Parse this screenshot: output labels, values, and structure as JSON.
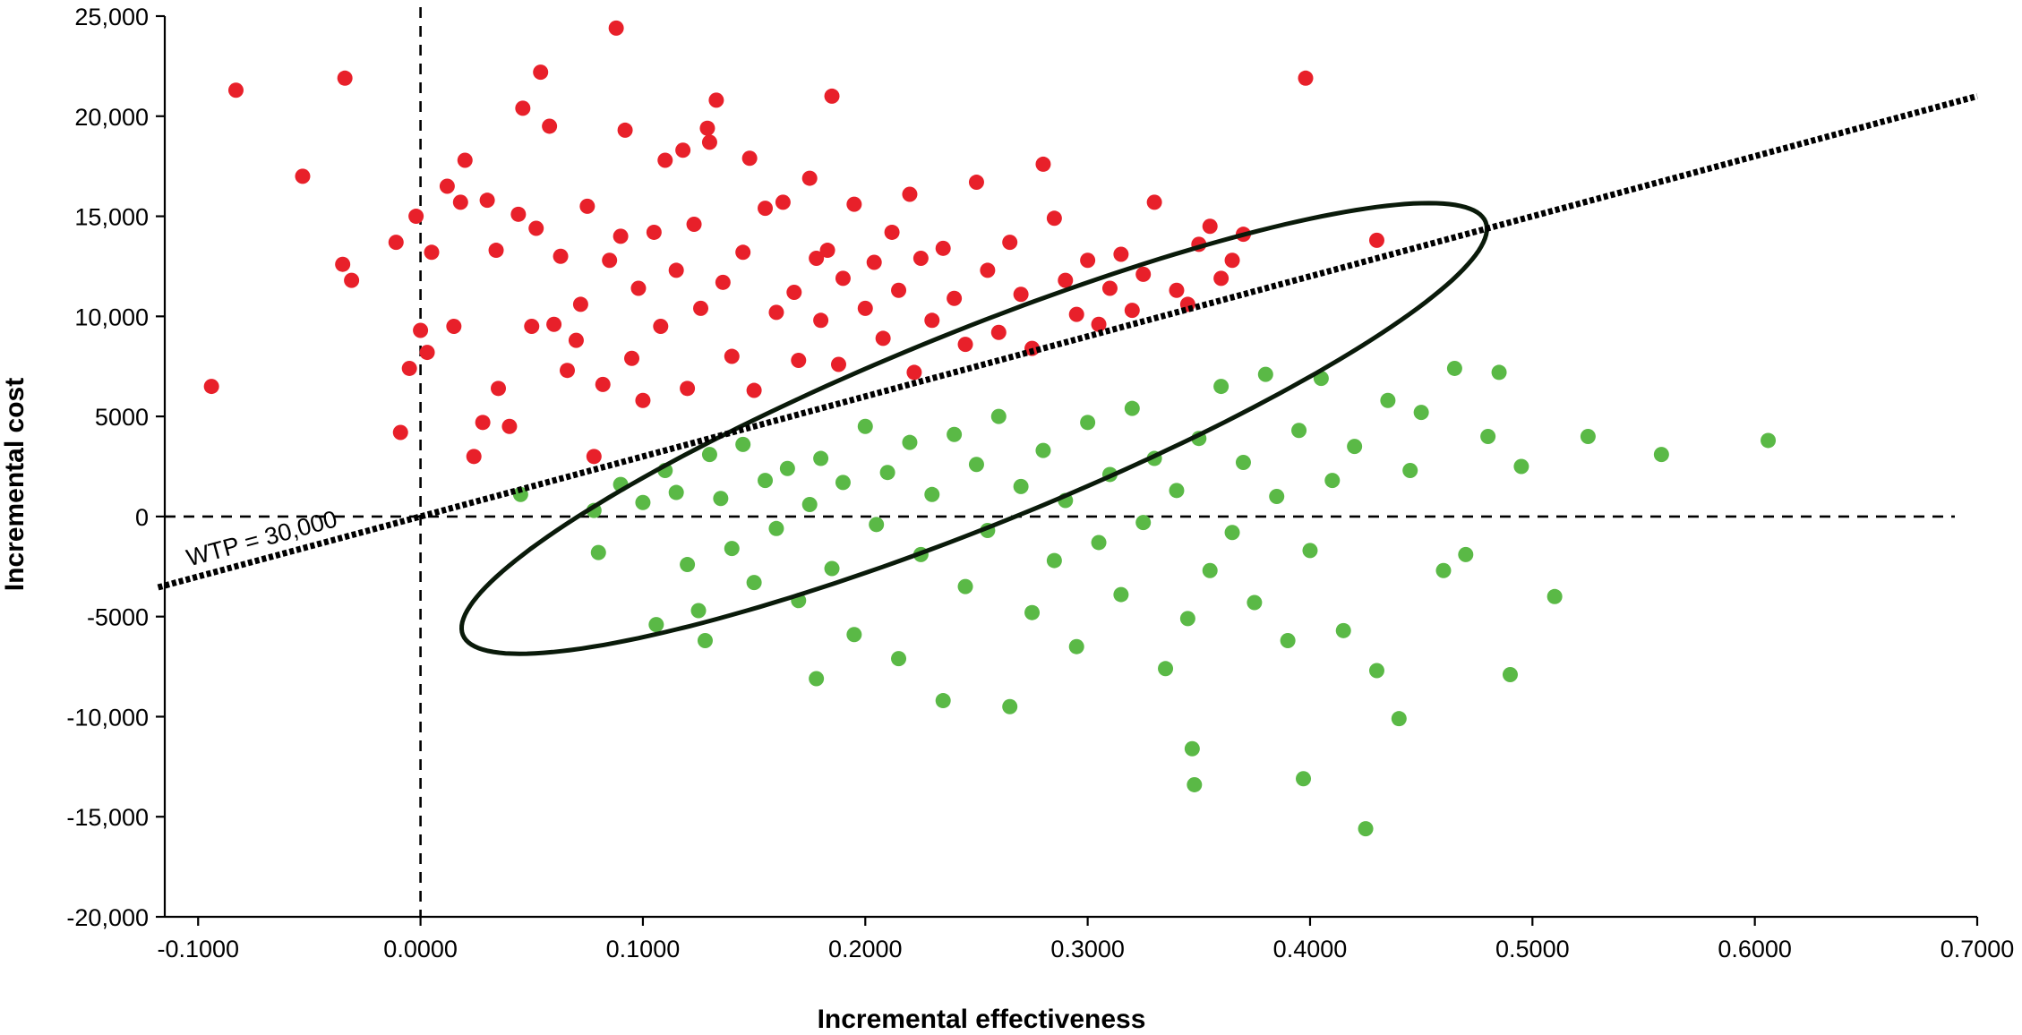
{
  "chart_data": {
    "type": "scatter",
    "title": "",
    "xlabel": "Incremental effectiveness",
    "ylabel": "Incremental cost",
    "xlim": [
      -0.115,
      0.7
    ],
    "ylim": [
      -20000,
      25000
    ],
    "x_ticks": [
      -0.1,
      0.0,
      0.1,
      0.2,
      0.3,
      0.4,
      0.5,
      0.6,
      0.7
    ],
    "x_tick_labels": [
      "-0.1000",
      "0.0000",
      "0.1000",
      "0.2000",
      "0.3000",
      "0.4000",
      "0.5000",
      "0.6000",
      "0.7000"
    ],
    "y_ticks": [
      25000,
      20000,
      15000,
      10000,
      5000,
      0,
      -5000,
      -10000,
      -15000,
      -20000
    ],
    "y_tick_labels": [
      "25,000",
      "20,000",
      "15,000",
      "10,000",
      "5000",
      "0",
      "-5000",
      "-10,000",
      "-15,000",
      "-20,000"
    ],
    "grid": false,
    "reference_lines": {
      "x": 0,
      "y": 0,
      "style": "dashed"
    },
    "wtp": {
      "label": "WTP = 30,000",
      "slope": 30000,
      "style": "dotted"
    },
    "confidence_ellipse": {
      "center": [
        0.249,
        4400
      ],
      "semi_major": 0.248,
      "semi_minor": 4850,
      "rotation_deg": -22
    },
    "colors": {
      "above_wtp": "#e8202a",
      "below_wtp": "#5ab946",
      "ellipse": "#0a1a0a"
    },
    "series": [
      {
        "color": "#e8202a",
        "points": [
          [
            -0.094,
            6500
          ],
          [
            -0.083,
            21300
          ],
          [
            -0.053,
            17000
          ],
          [
            -0.035,
            12600
          ],
          [
            -0.034,
            21900
          ],
          [
            -0.031,
            11800
          ],
          [
            -0.011,
            13700
          ],
          [
            -0.009,
            4200
          ],
          [
            -0.005,
            7400
          ],
          [
            -0.002,
            15000
          ],
          [
            0.0,
            9300
          ],
          [
            0.003,
            8200
          ],
          [
            0.005,
            13200
          ],
          [
            0.012,
            16500
          ],
          [
            0.015,
            9500
          ],
          [
            0.018,
            15700
          ],
          [
            0.02,
            17800
          ],
          [
            0.024,
            3000
          ],
          [
            0.028,
            4700
          ],
          [
            0.03,
            15800
          ],
          [
            0.034,
            13300
          ],
          [
            0.035,
            6400
          ],
          [
            0.04,
            4500
          ],
          [
            0.044,
            15100
          ],
          [
            0.046,
            20400
          ],
          [
            0.05,
            9500
          ],
          [
            0.052,
            14400
          ],
          [
            0.054,
            22200
          ],
          [
            0.058,
            19500
          ],
          [
            0.06,
            9600
          ],
          [
            0.063,
            13000
          ],
          [
            0.066,
            7300
          ],
          [
            0.07,
            8800
          ],
          [
            0.072,
            10600
          ],
          [
            0.075,
            15500
          ],
          [
            0.078,
            3000
          ],
          [
            0.082,
            6600
          ],
          [
            0.085,
            12800
          ],
          [
            0.088,
            24400
          ],
          [
            0.09,
            14000
          ],
          [
            0.092,
            19300
          ],
          [
            0.095,
            7900
          ],
          [
            0.098,
            11400
          ],
          [
            0.1,
            5800
          ],
          [
            0.105,
            14200
          ],
          [
            0.108,
            9500
          ],
          [
            0.11,
            17800
          ],
          [
            0.115,
            12300
          ],
          [
            0.118,
            18300
          ],
          [
            0.12,
            6400
          ],
          [
            0.123,
            14600
          ],
          [
            0.126,
            10400
          ],
          [
            0.129,
            19400
          ],
          [
            0.13,
            18700
          ],
          [
            0.133,
            20800
          ],
          [
            0.136,
            11700
          ],
          [
            0.14,
            8000
          ],
          [
            0.145,
            13200
          ],
          [
            0.148,
            17900
          ],
          [
            0.15,
            6300
          ],
          [
            0.155,
            15400
          ],
          [
            0.16,
            10200
          ],
          [
            0.163,
            15700
          ],
          [
            0.168,
            11200
          ],
          [
            0.17,
            7800
          ],
          [
            0.175,
            16900
          ],
          [
            0.178,
            12900
          ],
          [
            0.18,
            9800
          ],
          [
            0.183,
            13300
          ],
          [
            0.185,
            21000
          ],
          [
            0.188,
            7600
          ],
          [
            0.19,
            11900
          ],
          [
            0.195,
            15600
          ],
          [
            0.2,
            10400
          ],
          [
            0.204,
            12700
          ],
          [
            0.208,
            8900
          ],
          [
            0.212,
            14200
          ],
          [
            0.215,
            11300
          ],
          [
            0.22,
            16100
          ],
          [
            0.222,
            7200
          ],
          [
            0.225,
            12900
          ],
          [
            0.23,
            9800
          ],
          [
            0.235,
            13400
          ],
          [
            0.24,
            10900
          ],
          [
            0.245,
            8600
          ],
          [
            0.25,
            16700
          ],
          [
            0.255,
            12300
          ],
          [
            0.26,
            9200
          ],
          [
            0.265,
            13700
          ],
          [
            0.27,
            11100
          ],
          [
            0.275,
            8400
          ],
          [
            0.28,
            17600
          ],
          [
            0.285,
            14900
          ],
          [
            0.29,
            11800
          ],
          [
            0.295,
            10100
          ],
          [
            0.3,
            12800
          ],
          [
            0.305,
            9600
          ],
          [
            0.31,
            11400
          ],
          [
            0.315,
            13100
          ],
          [
            0.32,
            10300
          ],
          [
            0.325,
            12100
          ],
          [
            0.33,
            15700
          ],
          [
            0.34,
            11300
          ],
          [
            0.345,
            10600
          ],
          [
            0.35,
            13600
          ],
          [
            0.355,
            14500
          ],
          [
            0.36,
            11900
          ],
          [
            0.365,
            12800
          ],
          [
            0.37,
            14100
          ],
          [
            0.398,
            21900
          ],
          [
            0.43,
            13800
          ]
        ]
      },
      {
        "color": "#5ab946",
        "points": [
          [
            0.045,
            1100
          ],
          [
            0.078,
            300
          ],
          [
            0.08,
            -1800
          ],
          [
            0.09,
            1600
          ],
          [
            0.1,
            700
          ],
          [
            0.106,
            -5400
          ],
          [
            0.11,
            2300
          ],
          [
            0.115,
            1200
          ],
          [
            0.12,
            -2400
          ],
          [
            0.125,
            -4700
          ],
          [
            0.128,
            -6200
          ],
          [
            0.13,
            3100
          ],
          [
            0.135,
            900
          ],
          [
            0.14,
            -1600
          ],
          [
            0.145,
            3600
          ],
          [
            0.15,
            -3300
          ],
          [
            0.155,
            1800
          ],
          [
            0.16,
            -600
          ],
          [
            0.165,
            2400
          ],
          [
            0.17,
            -4200
          ],
          [
            0.175,
            600
          ],
          [
            0.178,
            -8100
          ],
          [
            0.18,
            2900
          ],
          [
            0.185,
            -2600
          ],
          [
            0.19,
            1700
          ],
          [
            0.195,
            -5900
          ],
          [
            0.2,
            4500
          ],
          [
            0.205,
            -400
          ],
          [
            0.21,
            2200
          ],
          [
            0.215,
            -7100
          ],
          [
            0.22,
            3700
          ],
          [
            0.225,
            -1900
          ],
          [
            0.23,
            1100
          ],
          [
            0.235,
            -9200
          ],
          [
            0.24,
            4100
          ],
          [
            0.245,
            -3500
          ],
          [
            0.25,
            2600
          ],
          [
            0.255,
            -700
          ],
          [
            0.26,
            5000
          ],
          [
            0.265,
            -9500
          ],
          [
            0.27,
            1500
          ],
          [
            0.275,
            -4800
          ],
          [
            0.28,
            3300
          ],
          [
            0.285,
            -2200
          ],
          [
            0.29,
            800
          ],
          [
            0.295,
            -6500
          ],
          [
            0.3,
            4700
          ],
          [
            0.305,
            -1300
          ],
          [
            0.31,
            2100
          ],
          [
            0.315,
            -3900
          ],
          [
            0.32,
            5400
          ],
          [
            0.325,
            -300
          ],
          [
            0.33,
            2900
          ],
          [
            0.335,
            -7600
          ],
          [
            0.34,
            1300
          ],
          [
            0.345,
            -5100
          ],
          [
            0.347,
            -11600
          ],
          [
            0.348,
            -13400
          ],
          [
            0.35,
            3900
          ],
          [
            0.355,
            -2700
          ],
          [
            0.36,
            6500
          ],
          [
            0.365,
            -800
          ],
          [
            0.37,
            2700
          ],
          [
            0.375,
            -4300
          ],
          [
            0.38,
            7100
          ],
          [
            0.385,
            1000
          ],
          [
            0.39,
            -6200
          ],
          [
            0.395,
            4300
          ],
          [
            0.397,
            -13100
          ],
          [
            0.4,
            -1700
          ],
          [
            0.405,
            6900
          ],
          [
            0.41,
            1800
          ],
          [
            0.415,
            -5700
          ],
          [
            0.42,
            3500
          ],
          [
            0.425,
            -15600
          ],
          [
            0.43,
            -7700
          ],
          [
            0.435,
            5800
          ],
          [
            0.44,
            -10100
          ],
          [
            0.445,
            2300
          ],
          [
            0.45,
            5200
          ],
          [
            0.46,
            -2700
          ],
          [
            0.465,
            7400
          ],
          [
            0.47,
            -1900
          ],
          [
            0.48,
            4000
          ],
          [
            0.485,
            7200
          ],
          [
            0.49,
            -7900
          ],
          [
            0.495,
            2500
          ],
          [
            0.51,
            -4000
          ],
          [
            0.525,
            4000
          ],
          [
            0.558,
            3100
          ],
          [
            0.606,
            3800
          ]
        ]
      }
    ]
  }
}
